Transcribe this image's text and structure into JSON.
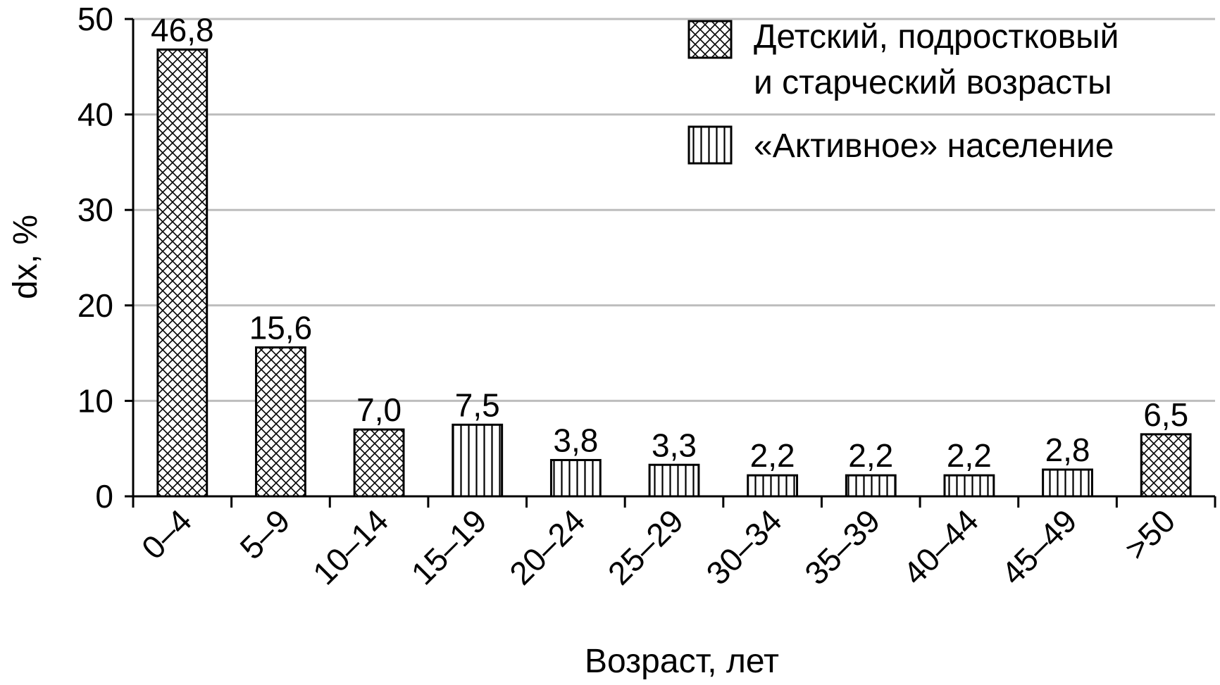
{
  "chart_data": {
    "type": "bar",
    "categories": [
      "0–4",
      "5–9",
      "10–14",
      "15–19",
      "20–24",
      "25–29",
      "30–34",
      "35–39",
      "40–44",
      "45–49",
      ">50"
    ],
    "values": [
      46.8,
      15.6,
      7.0,
      7.5,
      3.8,
      3.3,
      2.2,
      2.2,
      2.2,
      2.8,
      6.5
    ],
    "data_labels": [
      "46,8",
      "15,6",
      "7,0",
      "7,5",
      "3,8",
      "3,3",
      "2,2",
      "2,2",
      "2,2",
      "2,8",
      "6,5"
    ],
    "groups": [
      "child",
      "child",
      "child",
      "active",
      "active",
      "active",
      "active",
      "active",
      "active",
      "active",
      "child"
    ],
    "legend": [
      {
        "key": "child",
        "lines": [
          "Детский, подростковый",
          "и старческий возрасты"
        ],
        "pattern": "crosshatch"
      },
      {
        "key": "active",
        "lines": [
          "«Активное» население"
        ],
        "pattern": "vertical"
      }
    ],
    "legend_position": "top-right",
    "xlabel": "Возраст, лет",
    "ylabel": "dx, %",
    "ylim": [
      0,
      50
    ],
    "yticks": [
      0,
      10,
      20,
      30,
      40,
      50
    ],
    "grid": true,
    "colors": {
      "bar_fill": "#ffffff",
      "stroke": "#000000",
      "grid": "#bdbdbd"
    }
  }
}
